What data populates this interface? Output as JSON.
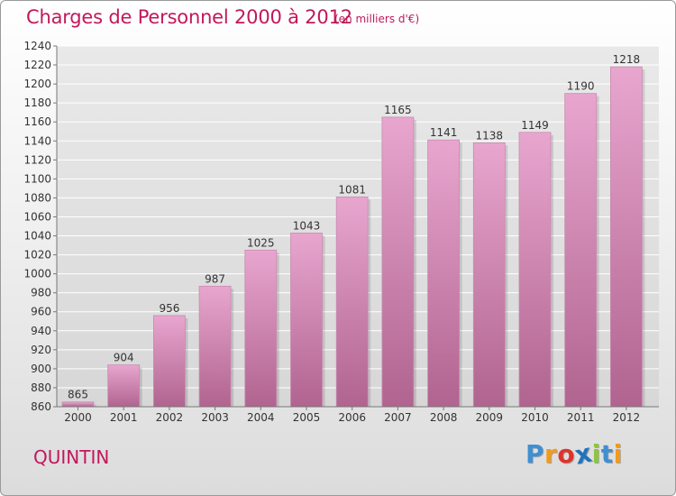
{
  "header": {
    "title": "Charges de Personnel 2000 à 2012",
    "subtitle": "(en milliers d'€)"
  },
  "footer": {
    "commune": "QUINTIN",
    "logo_text": "Proxiti",
    "logo_letters": [
      "P",
      "r",
      "o",
      "x",
      "i",
      "t",
      "i"
    ],
    "logo_colors": [
      "#3f8fd2",
      "#f29a1d",
      "#e0322b",
      "#1e73be",
      "#8cc63f",
      "#3f8fd2",
      "#f29a1d"
    ]
  },
  "chart_data": {
    "type": "bar",
    "categories": [
      "2000",
      "2001",
      "2002",
      "2003",
      "2004",
      "2005",
      "2006",
      "2007",
      "2008",
      "2009",
      "2010",
      "2011",
      "2012"
    ],
    "values": [
      865,
      904,
      956,
      987,
      1025,
      1043,
      1081,
      1165,
      1141,
      1138,
      1149,
      1190,
      1218
    ],
    "ylim": [
      860,
      1240
    ],
    "yticks": [
      860,
      880,
      900,
      920,
      940,
      960,
      980,
      1000,
      1020,
      1040,
      1060,
      1080,
      1100,
      1120,
      1140,
      1160,
      1180,
      1200,
      1220,
      1240
    ],
    "grid": true,
    "bar_color_top": "#e8a6cf",
    "bar_color_bottom": "#b0648f",
    "grid_color": "#ffffff"
  }
}
